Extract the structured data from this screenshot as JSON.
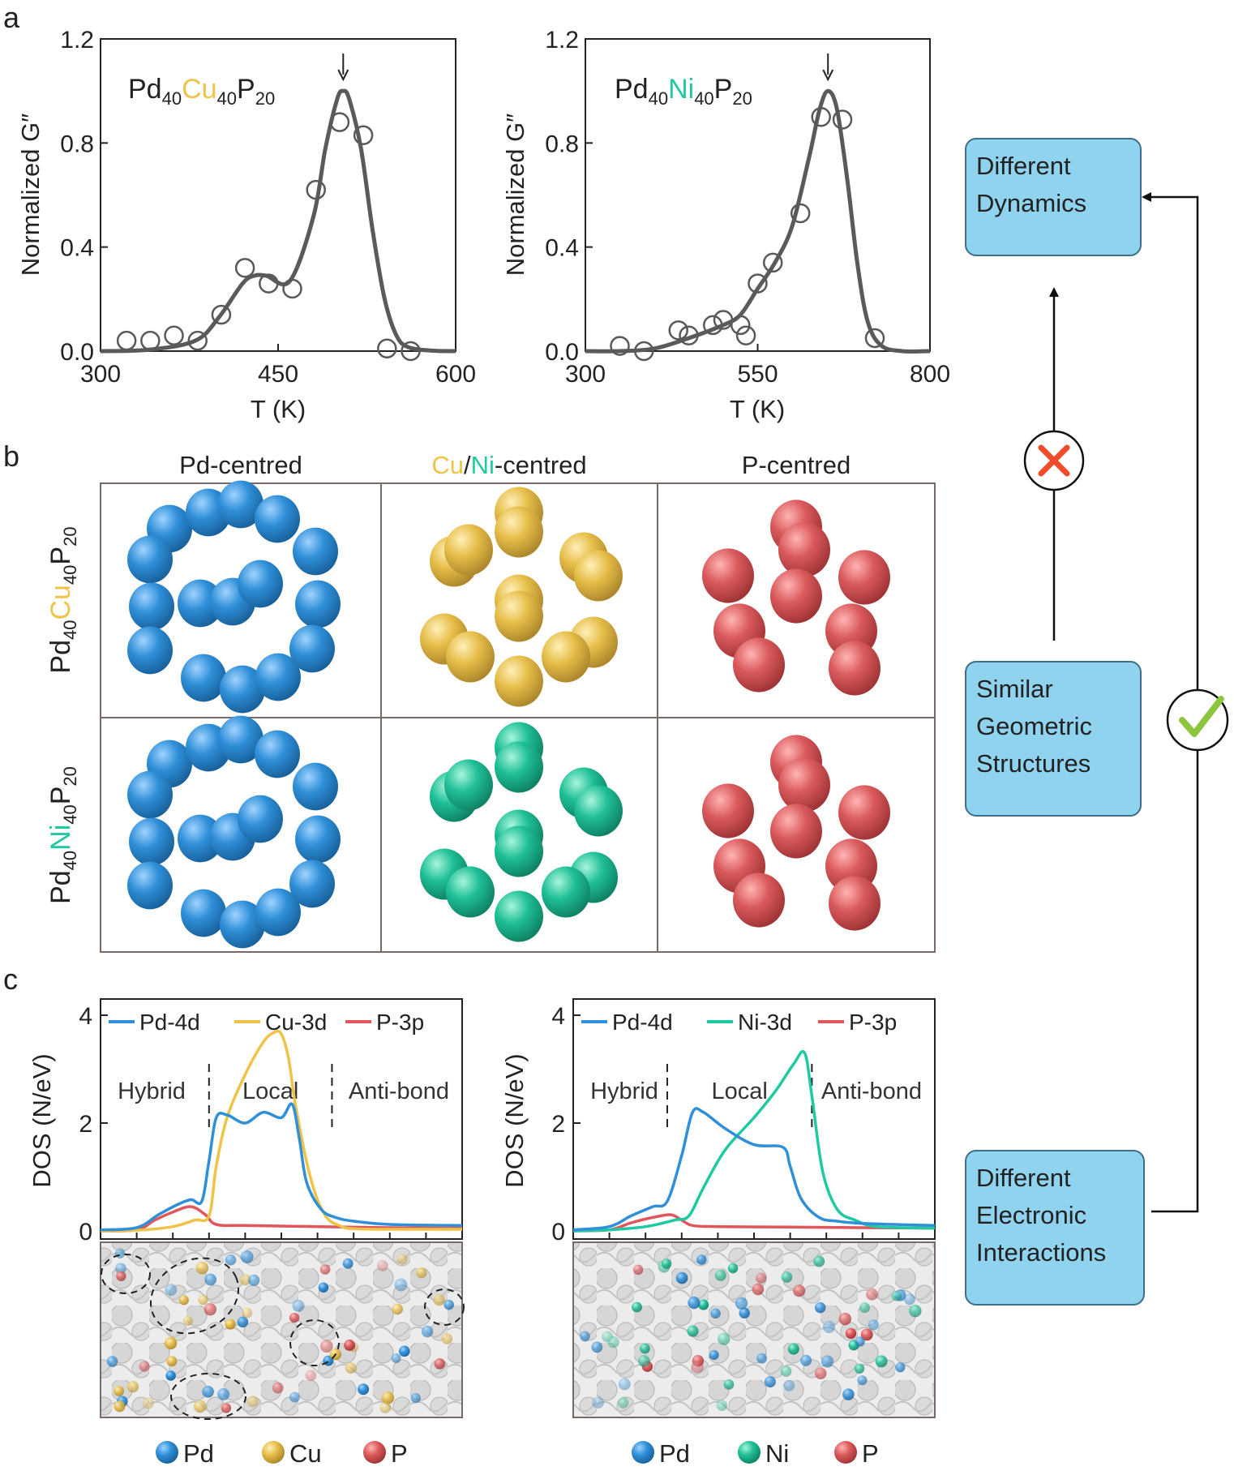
{
  "panel_labels": {
    "a": "a",
    "b": "b",
    "c": "c"
  },
  "colors": {
    "pd": "#2f8fd8",
    "cu": "#eec348",
    "ni": "#1fc9a1",
    "p": "#e0565a",
    "curve": "#595959",
    "box_fill": "#8fd3ef",
    "cross": "#f04b2a",
    "check": "#8cc63f"
  },
  "panel_a": {
    "charts": [
      {
        "composition": {
          "el1": "Pd",
          "sub1": "40",
          "el2": "Cu",
          "sub2": "40",
          "el3": "P",
          "sub3": "20"
        },
        "ylabel": "Normalized G″",
        "xlabel": "T (K)",
        "xlim": [
          300,
          600
        ],
        "ylim": [
          0,
          1.2
        ],
        "xticks": [
          "300",
          "450",
          "600"
        ],
        "yticks": [
          "0.0",
          "0.4",
          "0.8",
          "1.2"
        ]
      },
      {
        "composition": {
          "el1": "Pd",
          "sub1": "40",
          "el2": "Ni",
          "sub2": "40",
          "el3": "P",
          "sub3": "20"
        },
        "ylabel": "Normalized G″",
        "xlabel": "T (K)",
        "xlim": [
          300,
          800
        ],
        "ylim": [
          0,
          1.2
        ],
        "xticks": [
          "300",
          "550",
          "800"
        ],
        "yticks": [
          "0.0",
          "0.4",
          "0.8",
          "1.2"
        ]
      }
    ]
  },
  "panel_b": {
    "column_headers": [
      "Pd-centred",
      "Cu/Ni-centred",
      "P-centred"
    ],
    "header_parts": {
      "cu": "Cu",
      "slash": "/",
      "ni": "Ni",
      "rest": "-centred"
    },
    "row_labels": [
      {
        "el1": "Pd",
        "sub1": "40",
        "el2": "Cu",
        "sub2": "40",
        "el3": "P",
        "sub3": "20"
      },
      {
        "el1": "Pd",
        "sub1": "40",
        "el2": "Ni",
        "sub2": "40",
        "el3": "P",
        "sub3": "20"
      }
    ]
  },
  "panel_c": {
    "charts": [
      {
        "ylabel": "DOS (N/eV)",
        "yticks": [
          "0",
          "2",
          "4"
        ],
        "legend": [
          "Pd-4d",
          "Cu-3d",
          "P-3p"
        ],
        "regions": [
          "Hybrid",
          "Local",
          "Anti-bond"
        ]
      },
      {
        "ylabel": "DOS (N/eV)",
        "yticks": [
          "0",
          "2",
          "4"
        ],
        "legend": [
          "Pd-4d",
          "Ni-3d",
          "P-3p"
        ],
        "regions": [
          "Hybrid",
          "Local",
          "Anti-bond"
        ]
      }
    ],
    "atom_legends": [
      [
        "Pd",
        "Cu",
        "P"
      ],
      [
        "Pd",
        "Ni",
        "P"
      ]
    ]
  },
  "flow": {
    "top_box": [
      "Different",
      "Dynamics"
    ],
    "middle_box": [
      "Similar",
      "Geometric",
      "Structures"
    ],
    "bottom_box": [
      "Different",
      "Electronic",
      "Interactions"
    ]
  },
  "chart_data": [
    {
      "type": "scatter",
      "title": "Pd40Cu40P20",
      "xlabel": "T (K)",
      "ylabel": "Normalized G″",
      "xlim": [
        300,
        600
      ],
      "ylim": [
        0,
        1.2
      ],
      "series": [
        {
          "kind": "points",
          "x": [
            322,
            342,
            362,
            382,
            402,
            422,
            442,
            462,
            482,
            502,
            522,
            542,
            562
          ],
          "y": [
            0.04,
            0.04,
            0.06,
            0.04,
            0.14,
            0.32,
            0.26,
            0.24,
            0.62,
            0.88,
            0.83,
            0.01,
            0.0
          ]
        },
        {
          "kind": "fit",
          "x": [
            300,
            340,
            380,
            400,
            420,
            430,
            440,
            460,
            480,
            490,
            500,
            505,
            510,
            520,
            530,
            540,
            550,
            560,
            580,
            600
          ],
          "y": [
            0.0,
            0.005,
            0.04,
            0.13,
            0.26,
            0.29,
            0.29,
            0.27,
            0.52,
            0.78,
            0.97,
            1.0,
            0.97,
            0.78,
            0.46,
            0.2,
            0.06,
            0.015,
            0.002,
            0.0
          ]
        }
      ],
      "annotations": [
        "arrow at peak, T≈505 K"
      ]
    },
    {
      "type": "scatter",
      "title": "Pd40Ni40P20",
      "xlabel": "T (K)",
      "ylabel": "Normalized G″",
      "xlim": [
        300,
        800
      ],
      "ylim": [
        0,
        1.2
      ],
      "series": [
        {
          "kind": "points",
          "x": [
            350,
            385,
            435,
            450,
            485,
            500,
            525,
            533,
            550,
            572,
            612,
            642,
            673,
            720
          ],
          "y": [
            0.02,
            0.0,
            0.08,
            0.06,
            0.1,
            0.12,
            0.1,
            0.06,
            0.26,
            0.34,
            0.53,
            0.9,
            0.89,
            0.05
          ]
        },
        {
          "kind": "fit",
          "x": [
            300,
            350,
            400,
            450,
            500,
            525,
            550,
            575,
            600,
            625,
            640,
            652,
            665,
            680,
            695,
            710,
            730,
            760,
            800
          ],
          "y": [
            0.0,
            0.0,
            0.01,
            0.05,
            0.1,
            0.14,
            0.24,
            0.34,
            0.48,
            0.75,
            0.93,
            1.0,
            0.93,
            0.66,
            0.33,
            0.11,
            0.02,
            0.0,
            0.0
          ]
        }
      ],
      "annotations": [
        "arrow at peak, T≈652 K"
      ]
    },
    {
      "type": "line",
      "title": "",
      "xlabel": "",
      "ylabel": "DOS (N/eV)",
      "xlim": [
        0,
        10
      ],
      "ylim": [
        0,
        4.3
      ],
      "series": [
        {
          "name": "Pd-4d",
          "x": [
            0,
            1,
            1.6,
            2.1,
            2.5,
            2.8,
            3.0,
            3.2,
            3.5,
            4.0,
            4.5,
            5.0,
            5.3,
            5.5,
            5.7,
            6.1,
            6.5,
            7,
            8,
            10
          ],
          "y": [
            0.02,
            0.06,
            0.3,
            0.48,
            0.58,
            0.55,
            1.3,
            2.1,
            2.15,
            2.0,
            2.2,
            2.1,
            2.35,
            1.7,
            0.9,
            0.4,
            0.25,
            0.18,
            0.12,
            0.1
          ]
        },
        {
          "name": "Cu-3d",
          "x": [
            0,
            1,
            2,
            2.6,
            3.0,
            3.2,
            3.5,
            4.0,
            4.5,
            4.8,
            5.0,
            5.2,
            5.4,
            5.8,
            6.2,
            6.6,
            7,
            8,
            10
          ],
          "y": [
            0.0,
            0.01,
            0.08,
            0.2,
            0.28,
            1.2,
            2.1,
            2.9,
            3.5,
            3.68,
            3.65,
            3.2,
            2.3,
            1.0,
            0.3,
            0.1,
            0.04,
            0.03,
            0.03
          ]
        },
        {
          "name": "P-3p",
          "x": [
            0,
            1,
            1.5,
            2.0,
            2.5,
            2.9,
            3.2,
            4,
            6,
            8,
            10
          ],
          "y": [
            0.0,
            0.02,
            0.2,
            0.35,
            0.45,
            0.3,
            0.12,
            0.1,
            0.08,
            0.06,
            0.05
          ]
        }
      ],
      "region_boundaries": [
        3.0,
        6.4
      ],
      "regions": [
        "Hybrid",
        "Local",
        "Anti-bond"
      ]
    },
    {
      "type": "line",
      "title": "",
      "xlabel": "",
      "ylabel": "DOS (N/eV)",
      "xlim": [
        0,
        10
      ],
      "ylim": [
        0,
        4.3
      ],
      "series": [
        {
          "name": "Pd-4d",
          "x": [
            0,
            1,
            1.6,
            2.2,
            2.6,
            3.0,
            3.3,
            3.6,
            4.2,
            5.0,
            5.8,
            6.0,
            6.3,
            6.8,
            7.3,
            8,
            10
          ],
          "y": [
            0.02,
            0.08,
            0.28,
            0.45,
            0.55,
            1.4,
            2.2,
            2.2,
            1.9,
            1.6,
            1.55,
            1.2,
            0.6,
            0.25,
            0.18,
            0.14,
            0.1
          ]
        },
        {
          "name": "Ni-3d",
          "x": [
            0,
            1,
            2,
            2.8,
            3.2,
            3.6,
            4.2,
            5.0,
            5.6,
            6.1,
            6.4,
            6.6,
            6.9,
            7.3,
            7.8,
            8.4,
            10
          ],
          "y": [
            0.0,
            0.02,
            0.08,
            0.2,
            0.28,
            0.8,
            1.5,
            2.1,
            2.6,
            3.1,
            3.3,
            2.5,
            1.1,
            0.4,
            0.2,
            0.08,
            0.05
          ]
        },
        {
          "name": "P-3p",
          "x": [
            0,
            1,
            1.6,
            2.2,
            2.7,
            3.0,
            3.3,
            4,
            6,
            8,
            10
          ],
          "y": [
            0.0,
            0.02,
            0.15,
            0.25,
            0.3,
            0.2,
            0.1,
            0.08,
            0.07,
            0.06,
            0.05
          ]
        }
      ],
      "region_boundaries": [
        2.6,
        6.6
      ],
      "regions": [
        "Hybrid",
        "Local",
        "Anti-bond"
      ]
    }
  ]
}
